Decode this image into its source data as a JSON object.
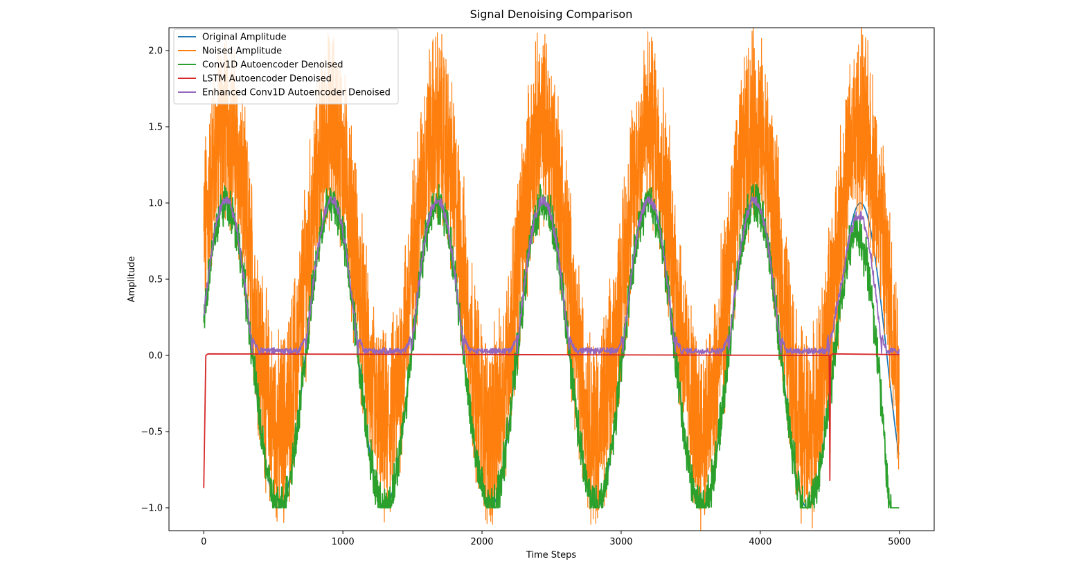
{
  "chart_data": {
    "type": "line",
    "title": "Signal Denoising Comparison",
    "xlabel": "Time Steps",
    "ylabel": "Amplitude",
    "xlim": [
      -250,
      5250
    ],
    "ylim": [
      -1.15,
      2.15
    ],
    "x_ticks": [
      0,
      1000,
      2000,
      3000,
      4000,
      5000
    ],
    "x_tick_labels": [
      "0",
      "1000",
      "2000",
      "3000",
      "4000",
      "5000"
    ],
    "y_ticks": [
      -1.0,
      -0.5,
      0.0,
      0.5,
      1.0,
      1.5,
      2.0
    ],
    "y_tick_labels": [
      "−1.0",
      "−0.5",
      "0.0",
      "0.5",
      "1.0",
      "1.5",
      "2.0"
    ],
    "grid": false,
    "legend_position": "top-left",
    "signal": {
      "num_points": 5000,
      "period": 760,
      "phase_offset": 30
    },
    "series": [
      {
        "name": "Original Amplitude",
        "color": "#1f77b4",
        "description": "clean sine, amplitude 1, period ~760 steps",
        "x": [
          0,
          220,
          600,
          980,
          1360,
          1740,
          2120,
          2500,
          2880,
          3260,
          3640,
          4020,
          4400,
          4780,
          5000
        ],
        "y": [
          0.25,
          1.0,
          -1.0,
          1.0,
          -1.0,
          1.0,
          -1.0,
          1.0,
          -1.0,
          1.0,
          -1.0,
          1.0,
          -1.0,
          1.0,
          0.27
        ]
      },
      {
        "name": "Noised Amplitude",
        "color": "#ff7f0e",
        "description": "sine shifted up by ~0.5 with heavy uniform noise (spread ~1.0)",
        "x": [
          0,
          220,
          600,
          980,
          1360,
          1740,
          2120,
          2500,
          2880,
          3260,
          3640,
          4020,
          4400,
          4780,
          5000
        ],
        "y_upper": [
          0.95,
          1.97,
          0.05,
          1.97,
          0.05,
          1.97,
          0.05,
          1.97,
          0.05,
          1.97,
          0.05,
          1.97,
          0.05,
          1.97,
          1.1
        ],
        "y_lower": [
          0.45,
          0.95,
          -0.95,
          0.95,
          -0.95,
          0.95,
          -0.95,
          0.95,
          -0.95,
          0.95,
          -0.95,
          0.95,
          -0.95,
          0.95,
          0.4
        ]
      },
      {
        "name": "Conv1D Autoencoder Denoised",
        "color": "#2ca02c",
        "description": "jittery sine tracking original, clipped at -1, runs away near end",
        "x": [
          0,
          220,
          600,
          980,
          1360,
          1740,
          2120,
          2500,
          2880,
          3260,
          3640,
          4020,
          4400,
          4700,
          4900,
          5000
        ],
        "y": [
          0.1,
          1.0,
          -1.0,
          1.0,
          -1.0,
          1.0,
          -1.0,
          1.0,
          -1.0,
          1.0,
          -1.0,
          1.0,
          -1.0,
          0.95,
          -0.05,
          -0.88
        ]
      },
      {
        "name": "LSTM Autoencoder Denoised",
        "color": "#d62728",
        "description": "flat near zero, initial spike to -0.87 and dip near step 4500",
        "x": [
          0,
          15,
          30,
          4495,
          4500,
          4505,
          4520,
          5000
        ],
        "y": [
          -0.87,
          0.0,
          0.01,
          0.0,
          -0.82,
          0.0,
          0.01,
          0.005
        ]
      },
      {
        "name": "Enhanced Conv1D Autoencoder Denoised",
        "color": "#9467bd",
        "description": "clipped sine: follows positive half (0 to ~1), flat near 0 otherwise",
        "x": [
          0,
          220,
          600,
          980,
          1360,
          1740,
          2120,
          2500,
          2880,
          3260,
          3640,
          4020,
          4400,
          4700,
          5000
        ],
        "y": [
          0.3,
          1.0,
          0.02,
          1.0,
          0.02,
          1.0,
          0.02,
          1.0,
          0.02,
          1.0,
          0.02,
          1.0,
          0.02,
          0.97,
          0.08
        ]
      }
    ]
  }
}
